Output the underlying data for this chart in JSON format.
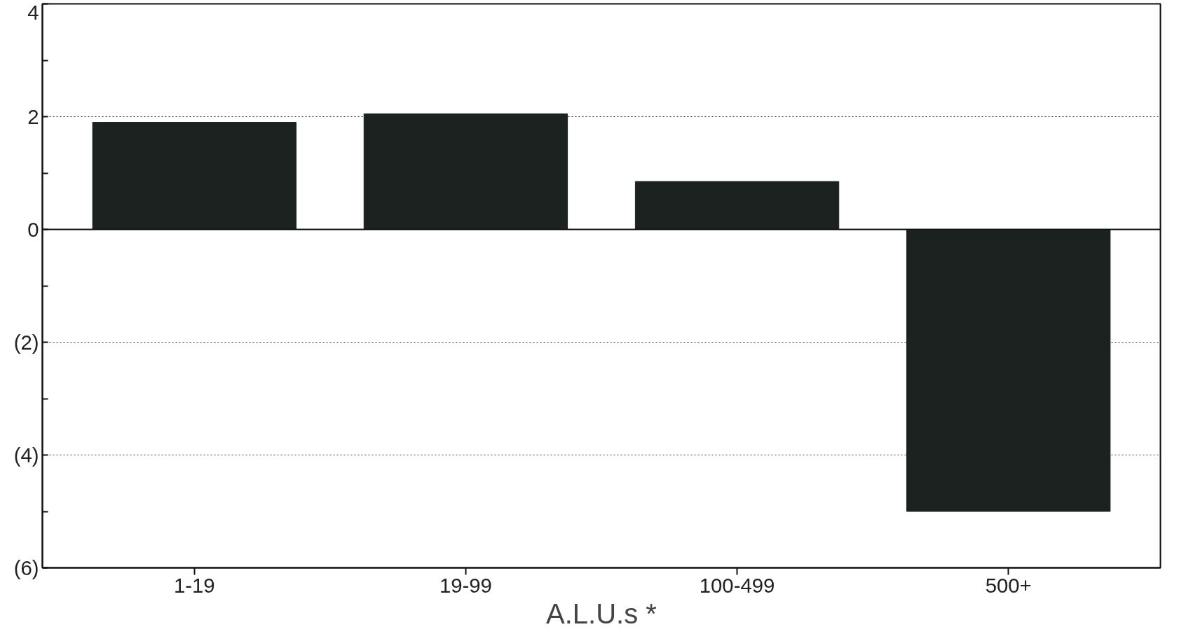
{
  "chart_data": {
    "type": "bar",
    "xlabel": "A.L.U.s *",
    "categories": [
      "1-19",
      "19-99",
      "100-499",
      "500+"
    ],
    "values": [
      1.9,
      2.05,
      0.85,
      -5.0
    ],
    "color": "#1c2220",
    "ylim": [
      -6,
      4
    ],
    "yticks": [
      {
        "value": 4,
        "label": "4"
      },
      {
        "value": 3,
        "label": null
      },
      {
        "value": 2,
        "label": "2"
      },
      {
        "value": 1,
        "label": null
      },
      {
        "value": 0,
        "label": "0"
      },
      {
        "value": -1,
        "label": null
      },
      {
        "value": -2,
        "label": "(2)"
      },
      {
        "value": -3,
        "label": null
      },
      {
        "value": -4,
        "label": "(4)"
      },
      {
        "value": -5,
        "label": null
      },
      {
        "value": -6,
        "label": "(6)"
      }
    ],
    "grid": "y",
    "ref_lines": [
      {
        "axis": "y",
        "value": 0,
        "label": null,
        "color": "#111111",
        "line_style": "solid"
      }
    ]
  }
}
